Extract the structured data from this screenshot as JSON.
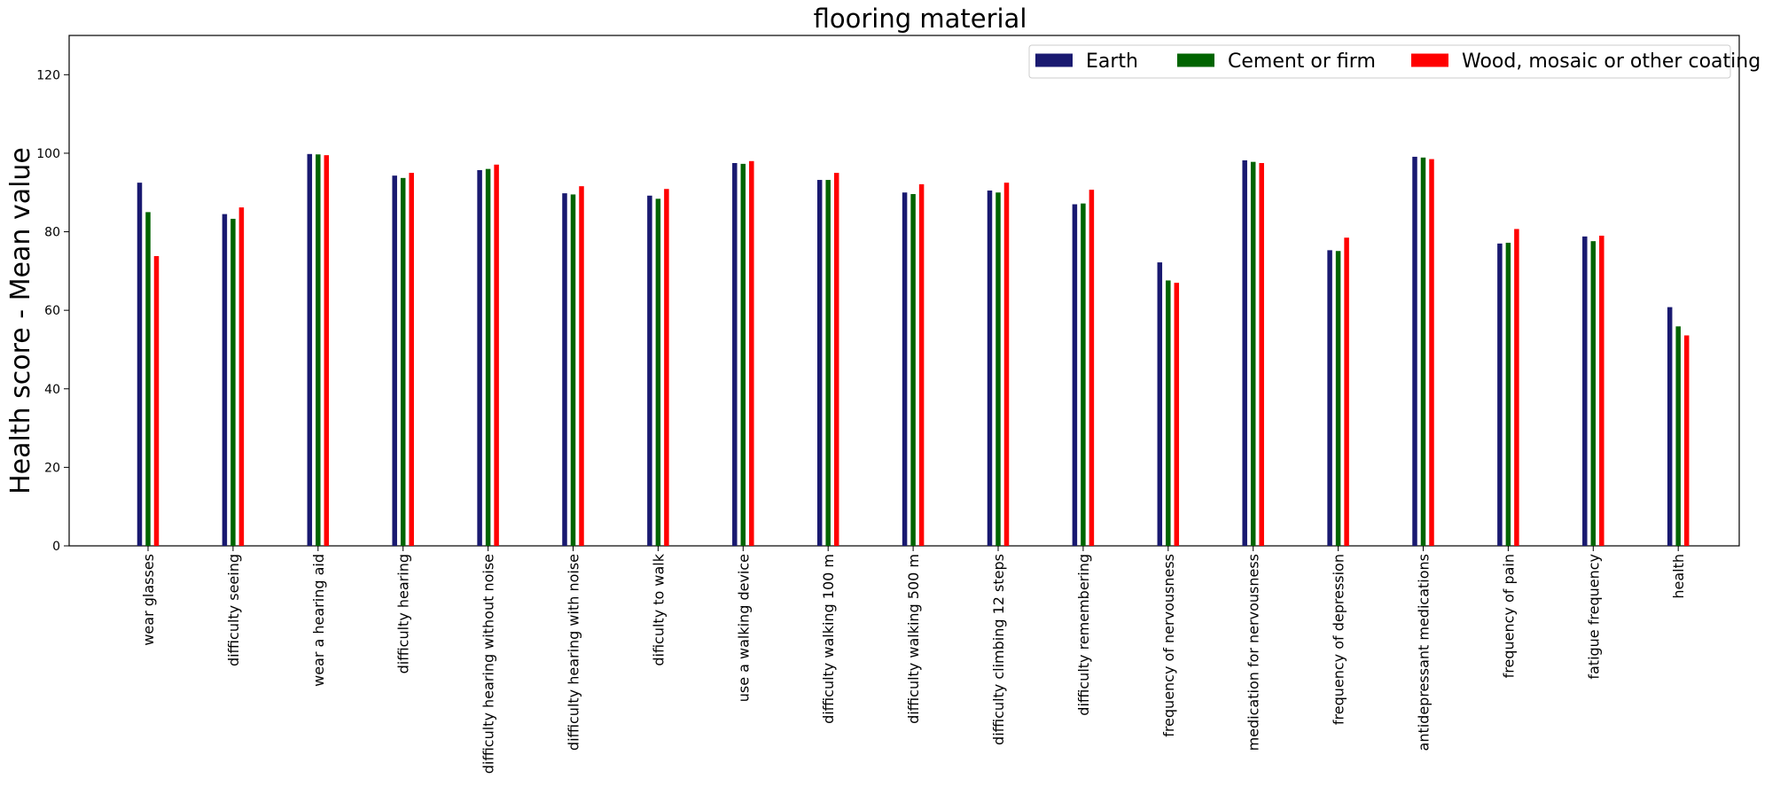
{
  "chart_data": {
    "type": "bar",
    "title": "flooring material",
    "xlabel": "",
    "ylabel": "Health score - Mean value",
    "ylim": [
      0,
      130
    ],
    "yticks": [
      0,
      20,
      40,
      60,
      80,
      100,
      120
    ],
    "grid": false,
    "legend_position": "top-right",
    "categories": [
      "wear glasses",
      "difficulty seeing",
      "wear a hearing aid",
      "difficulty hearing",
      "difficulty hearing without noise",
      "difficulty hearing with noise",
      "dificulty to walk",
      "use a walking device",
      "difficulty walking 100 m",
      "difficulty walking 500 m",
      "difficulty climbing 12 steps",
      "difficulty remembering",
      "frequency of nervousness",
      "medication for nervousness",
      "frequency of depression",
      "antidepressant medications",
      "frequency of pain",
      "fatigue frequency",
      "health"
    ],
    "series": [
      {
        "name": "Earth",
        "color": "#191970",
        "values": [
          92.5,
          84.5,
          99.8,
          94.3,
          95.7,
          89.8,
          89.2,
          97.5,
          93.2,
          90.0,
          90.5,
          87.0,
          72.2,
          98.2,
          75.3,
          99.1,
          77.0,
          78.8,
          60.8
        ]
      },
      {
        "name": "Cement or firm",
        "color": "#006400",
        "values": [
          85.0,
          83.3,
          99.7,
          93.7,
          96.0,
          89.5,
          88.4,
          97.3,
          93.2,
          89.6,
          90.0,
          87.2,
          67.6,
          97.8,
          75.1,
          98.9,
          77.2,
          77.6,
          55.9
        ]
      },
      {
        "name": "Wood, mosaic or other coating",
        "color": "#ff0000",
        "values": [
          73.8,
          86.2,
          99.5,
          95.0,
          97.1,
          91.6,
          90.9,
          98.0,
          95.0,
          92.1,
          92.5,
          90.7,
          67.0,
          97.5,
          78.5,
          98.5,
          80.7,
          79.0,
          53.6
        ]
      }
    ]
  }
}
